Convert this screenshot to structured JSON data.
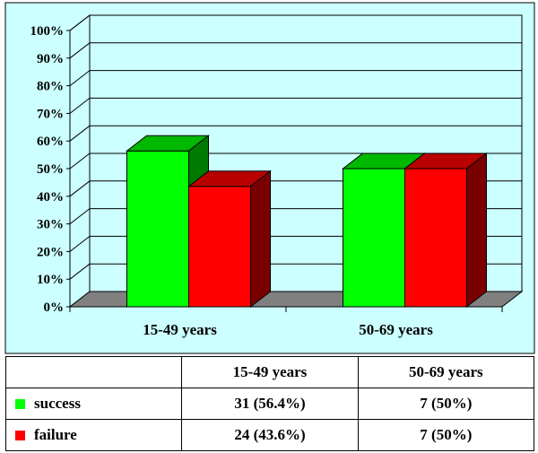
{
  "colors": {
    "success": "#00ff00",
    "failure": "#ff0000",
    "panel_background": "#ccffff",
    "floor": "#808080"
  },
  "chart_data": {
    "type": "bar",
    "style": "3d-clustered-column",
    "categories": [
      "15-49 years",
      "50-69 years"
    ],
    "series": [
      {
        "name": "success",
        "values": [
          56.4,
          50
        ],
        "color": "#00ff00"
      },
      {
        "name": "failure",
        "values": [
          43.6,
          50
        ],
        "color": "#ff0000"
      }
    ],
    "ylim": [
      0,
      100
    ],
    "y_ticks": [
      "0%",
      "10%",
      "20%",
      "30%",
      "40%",
      "50%",
      "60%",
      "70%",
      "80%",
      "90%",
      "100%"
    ],
    "grid": true,
    "legend": "in data table"
  },
  "table": {
    "headers": [
      "",
      "15-49 years",
      "50-69 years"
    ],
    "rows": [
      {
        "label": "success",
        "cells": [
          "31 (56.4%)",
          "7 (50%)"
        ]
      },
      {
        "label": "failure",
        "cells": [
          "24 (43.6%)",
          "7 (50%)"
        ]
      }
    ]
  }
}
